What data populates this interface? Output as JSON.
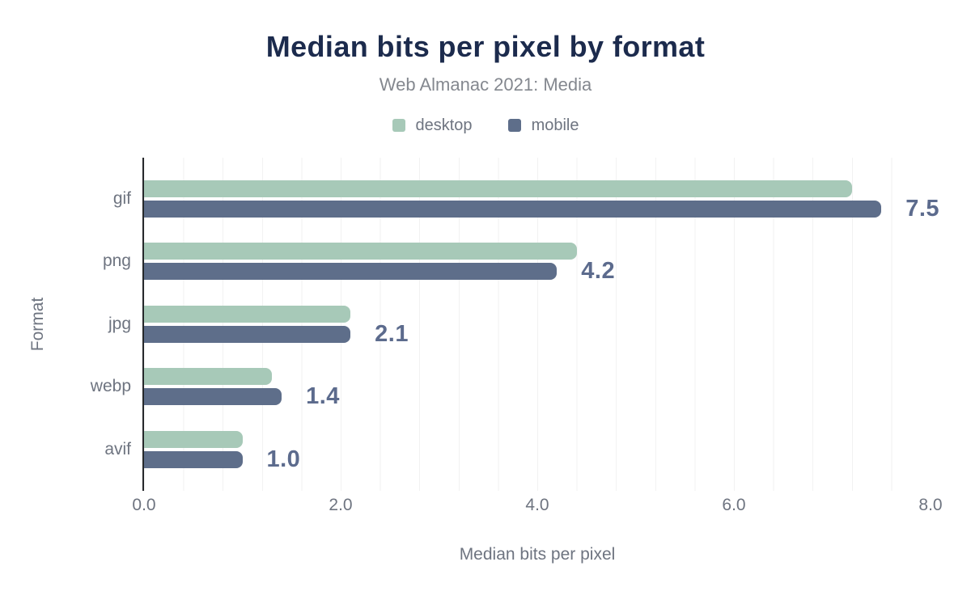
{
  "chart_data": {
    "type": "bar",
    "orientation": "horizontal",
    "title": "Median bits per pixel by format",
    "subtitle": "Web Almanac 2021: Media",
    "categories": [
      "gif",
      "png",
      "jpg",
      "webp",
      "avif"
    ],
    "series": [
      {
        "name": "desktop",
        "color": "#a7c9b8",
        "values": [
          7.2,
          4.4,
          2.1,
          1.3,
          1.0
        ]
      },
      {
        "name": "mobile",
        "color": "#5e6e8a",
        "values": [
          7.5,
          4.2,
          2.1,
          1.4,
          1.0
        ]
      }
    ],
    "annotation_series": "mobile",
    "annotations": [
      "7.5",
      "4.2",
      "2.1",
      "1.4",
      "1.0"
    ],
    "xlabel": "Median bits per pixel",
    "ylabel": "Format",
    "xlim": [
      0,
      8
    ],
    "x_ticks": [
      "0.0",
      "2.0",
      "4.0",
      "6.0",
      "8.0"
    ],
    "grid": "vertical minor gridlines every 0.4 units",
    "legend_position": "top"
  },
  "colors": {
    "title_text": "#1c2b4d",
    "subtitle_text": "#84888f",
    "muted_text": "#6e7480",
    "annotation_text": "#5c6b8d",
    "axis_line": "#26282b",
    "gridline": "#f2f2f2",
    "background": "#ffffff"
  }
}
